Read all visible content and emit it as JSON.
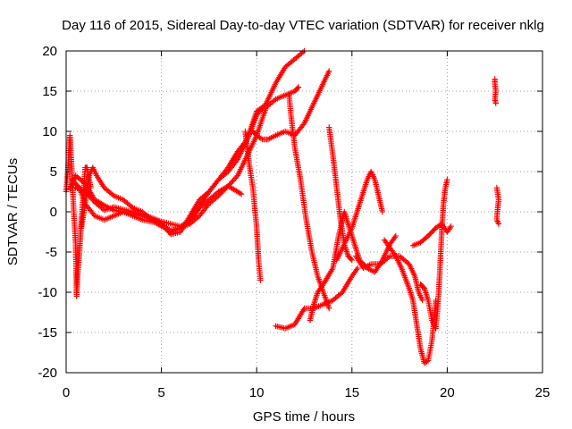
{
  "chart_data": {
    "type": "scatter",
    "title": "Day 116 of 2015, Sidereal Day-to-day VTEC variation (SDTVAR) for receiver nklg",
    "xlabel": "GPS time / hours",
    "ylabel": "SDTVAR / TECUs",
    "xlim": [
      0,
      25
    ],
    "ylim": [
      -20,
      20
    ],
    "xticks": [
      "0",
      "5",
      "10",
      "15",
      "20",
      "25"
    ],
    "yticks": [
      "-20",
      "-15",
      "-10",
      "-5",
      "0",
      "5",
      "10",
      "15",
      "20"
    ],
    "grid": true,
    "marker": "+",
    "color": "#ff0000",
    "series": [
      {
        "points": [
          [
            0.0,
            2.5
          ],
          [
            0.1,
            5.5
          ],
          [
            0.2,
            9.5
          ],
          [
            0.3,
            5
          ],
          [
            0.4,
            0
          ],
          [
            0.5,
            -4
          ],
          [
            0.55,
            -10.5
          ],
          [
            0.6,
            -8
          ],
          [
            0.7,
            -5
          ],
          [
            0.8,
            -1
          ],
          [
            0.9,
            2
          ],
          [
            1.0,
            5.5
          ],
          [
            1.1,
            5.5
          ],
          [
            1.2,
            4
          ],
          [
            1.3,
            3
          ]
        ]
      },
      {
        "points": [
          [
            0.2,
            2.8
          ],
          [
            0.5,
            4.5
          ],
          [
            1.0,
            3.5
          ],
          [
            1.5,
            1.5
          ],
          [
            2.0,
            0.8
          ],
          [
            2.5,
            0.2
          ],
          [
            3.0,
            0
          ],
          [
            3.5,
            -0.3
          ],
          [
            4.0,
            -0.5
          ],
          [
            4.5,
            -1
          ],
          [
            5.0,
            -1.8
          ],
          [
            5.5,
            -2.3
          ],
          [
            6.0,
            -2
          ],
          [
            6.5,
            -1
          ],
          [
            7.0,
            0.8
          ],
          [
            7.5,
            2.5
          ],
          [
            8.0,
            4
          ],
          [
            8.5,
            5.5
          ],
          [
            9.0,
            7.5
          ],
          [
            9.5,
            9
          ],
          [
            10.0,
            12
          ],
          [
            10.5,
            13.5
          ],
          [
            11.0,
            16
          ],
          [
            11.5,
            18
          ],
          [
            12.0,
            19
          ],
          [
            12.5,
            20
          ]
        ]
      },
      {
        "points": [
          [
            0.3,
            4
          ],
          [
            0.7,
            3
          ],
          [
            1.0,
            1
          ],
          [
            1.5,
            -0.5
          ],
          [
            2.0,
            -1
          ],
          [
            3.0,
            0
          ],
          [
            4.0,
            -1
          ],
          [
            5.0,
            -1.5
          ],
          [
            5.5,
            -2.5
          ],
          [
            6.5,
            -1.5
          ],
          [
            7.0,
            -0.5
          ],
          [
            7.5,
            1
          ],
          [
            8.0,
            2
          ],
          [
            8.5,
            3.2
          ],
          [
            9.0,
            4.5
          ],
          [
            9.5,
            7
          ],
          [
            10.0,
            9.5
          ],
          [
            10.5,
            13
          ],
          [
            11.0,
            14
          ],
          [
            11.5,
            14.5
          ],
          [
            12.0,
            15
          ],
          [
            12.2,
            15.5
          ]
        ]
      },
      {
        "points": [
          [
            0.5,
            3
          ],
          [
            1.0,
            2.5
          ],
          [
            1.5,
            1.2
          ],
          [
            2.0,
            0.2
          ],
          [
            2.5,
            0.6
          ],
          [
            3.0,
            0.3
          ],
          [
            4.0,
            -0.3
          ],
          [
            5.0,
            -1.2
          ],
          [
            6.0,
            -1.8
          ],
          [
            6.5,
            -1.2
          ],
          [
            7.0,
            0.5
          ],
          [
            7.5,
            1.5
          ],
          [
            8.0,
            2.5
          ],
          [
            8.5,
            3.2
          ],
          [
            9.0,
            2.5
          ],
          [
            9.2,
            2.2
          ]
        ]
      },
      {
        "points": [
          [
            0.8,
            -2
          ],
          [
            1.0,
            1
          ],
          [
            1.2,
            4.5
          ],
          [
            1.4,
            5.5
          ],
          [
            1.6,
            4.5
          ],
          [
            2.0,
            3
          ],
          [
            2.5,
            2
          ],
          [
            3.0,
            1.5
          ],
          [
            3.5,
            0.5
          ],
          [
            4.0,
            0
          ],
          [
            4.5,
            -1
          ],
          [
            5.0,
            -1.5
          ],
          [
            5.5,
            -2.8
          ],
          [
            6.0,
            -2.5
          ],
          [
            6.5,
            -0.5
          ],
          [
            7.0,
            1.5
          ],
          [
            7.5,
            2.5
          ],
          [
            8.0,
            4
          ],
          [
            8.5,
            5
          ],
          [
            9.0,
            6.5
          ],
          [
            9.5,
            9
          ],
          [
            10.0,
            12.5
          ],
          [
            10.3,
            13
          ]
        ]
      },
      {
        "points": [
          [
            9.5,
            9.5
          ],
          [
            9.8,
            10
          ],
          [
            10.0,
            9.5
          ],
          [
            10.3,
            9
          ],
          [
            10.6,
            9
          ],
          [
            11.0,
            9.5
          ],
          [
            11.5,
            10
          ],
          [
            12.0,
            9.5
          ],
          [
            12.5,
            11
          ],
          [
            13.0,
            13.5
          ],
          [
            13.5,
            16
          ],
          [
            13.8,
            17.5
          ]
        ]
      },
      {
        "points": [
          [
            9.4,
            10
          ],
          [
            9.6,
            6
          ],
          [
            9.8,
            3
          ],
          [
            10.0,
            -2
          ],
          [
            10.1,
            -6
          ],
          [
            10.2,
            -8.5
          ]
        ]
      },
      {
        "points": [
          [
            11.7,
            14.5
          ],
          [
            11.8,
            12
          ],
          [
            12.0,
            8
          ],
          [
            12.3,
            4
          ],
          [
            12.6,
            -1
          ],
          [
            12.9,
            -5
          ],
          [
            13.2,
            -8
          ],
          [
            13.5,
            -10
          ],
          [
            13.8,
            -12
          ]
        ]
      },
      {
        "points": [
          [
            11.0,
            -14.2
          ],
          [
            11.5,
            -14.5
          ],
          [
            12.0,
            -14
          ],
          [
            12.5,
            -12
          ],
          [
            13.0,
            -12
          ],
          [
            13.5,
            -11.5
          ],
          [
            14.0,
            -11
          ],
          [
            14.5,
            -10
          ],
          [
            15.0,
            -8
          ],
          [
            15.3,
            -7
          ]
        ]
      },
      {
        "points": [
          [
            12.8,
            -13.5
          ],
          [
            13.0,
            -11.5
          ],
          [
            13.2,
            -10
          ],
          [
            13.5,
            -9
          ],
          [
            14.0,
            -7
          ],
          [
            14.3,
            -3
          ],
          [
            14.6,
            0
          ],
          [
            15.0,
            -3
          ],
          [
            15.4,
            -6
          ],
          [
            15.8,
            -7
          ],
          [
            16.2,
            -7.5
          ],
          [
            16.6,
            -6
          ],
          [
            17.0,
            -4
          ],
          [
            17.3,
            -3
          ]
        ]
      },
      {
        "points": [
          [
            13.8,
            10.5
          ],
          [
            14.0,
            7
          ],
          [
            14.2,
            3
          ],
          [
            14.4,
            -1
          ],
          [
            14.6,
            -4
          ],
          [
            14.8,
            -5.5
          ],
          [
            15.0,
            -6
          ]
        ]
      },
      {
        "points": [
          [
            14.2,
            -6
          ],
          [
            14.6,
            -4
          ],
          [
            15.0,
            -2
          ],
          [
            15.4,
            1
          ],
          [
            15.8,
            4
          ],
          [
            16.0,
            5
          ],
          [
            16.2,
            4
          ],
          [
            16.4,
            2
          ],
          [
            16.6,
            0
          ]
        ]
      },
      {
        "points": [
          [
            15.2,
            -5.5
          ],
          [
            15.6,
            -7
          ],
          [
            16.0,
            -6.5
          ],
          [
            16.5,
            -6.5
          ],
          [
            17.0,
            -5.5
          ],
          [
            17.5,
            -5.5
          ],
          [
            18.0,
            -6.5
          ],
          [
            18.3,
            -8
          ],
          [
            18.5,
            -10
          ],
          [
            18.7,
            -11
          ]
        ]
      },
      {
        "points": [
          [
            16.7,
            -3.5
          ],
          [
            17.0,
            -4.5
          ],
          [
            17.3,
            -5.5
          ],
          [
            17.6,
            -7
          ],
          [
            18.0,
            -9.5
          ],
          [
            18.2,
            -11
          ],
          [
            18.4,
            -14
          ],
          [
            18.6,
            -17
          ],
          [
            18.8,
            -18.8
          ],
          [
            19.0,
            -18.5
          ],
          [
            19.2,
            -16
          ],
          [
            19.4,
            -11
          ]
        ]
      },
      {
        "points": [
          [
            18.6,
            -9
          ],
          [
            18.8,
            -9.5
          ],
          [
            19.0,
            -11
          ],
          [
            19.2,
            -13.5
          ],
          [
            19.4,
            -14.5
          ],
          [
            19.5,
            -12
          ],
          [
            19.6,
            -8
          ],
          [
            19.7,
            -3
          ],
          [
            19.8,
            1
          ],
          [
            19.9,
            3
          ],
          [
            20.0,
            4
          ]
        ]
      },
      {
        "points": [
          [
            18.2,
            -4.2
          ],
          [
            18.6,
            -3.8
          ],
          [
            19.0,
            -3
          ],
          [
            19.4,
            -2
          ],
          [
            19.7,
            -1.5
          ],
          [
            20.0,
            -2.5
          ],
          [
            20.2,
            -1.8
          ]
        ]
      },
      {
        "points": [
          [
            22.5,
            16.5
          ],
          [
            22.5,
            16
          ],
          [
            22.55,
            15
          ],
          [
            22.5,
            14
          ],
          [
            22.55,
            13.5
          ]
        ]
      },
      {
        "points": [
          [
            22.6,
            3
          ],
          [
            22.7,
            1.5
          ],
          [
            22.65,
            0.5
          ],
          [
            22.6,
            -1
          ],
          [
            22.7,
            -1.5
          ]
        ]
      }
    ]
  }
}
